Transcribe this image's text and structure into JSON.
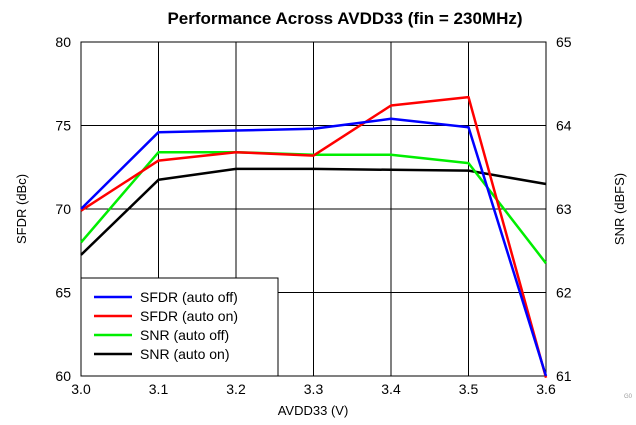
{
  "chart_data": {
    "type": "line",
    "title": "Performance Across AVDD33 (fin = 230MHz)",
    "xlabel": "AVDD33 (V)",
    "ylabel_left": "SFDR (dBc)",
    "ylabel_right": "SNR (dBFS)",
    "xlim": [
      3.0,
      3.6
    ],
    "ylim_left": [
      60,
      80
    ],
    "ylim_right": [
      61,
      65
    ],
    "x_ticks": [
      "3.0",
      "3.1",
      "3.2",
      "3.3",
      "3.4",
      "3.5",
      "3.6"
    ],
    "y_left_ticks": [
      "60",
      "65",
      "70",
      "75",
      "80"
    ],
    "y_right_ticks": [
      "61",
      "62",
      "63",
      "64",
      "65"
    ],
    "grid": true,
    "legend_position": "bottom-left",
    "series": [
      {
        "name": "SFDR (auto off)",
        "axis": "left",
        "color": "#0000ff",
        "x": [
          3.0,
          3.1,
          3.2,
          3.3,
          3.4,
          3.5,
          3.6
        ],
        "y": [
          70.0,
          74.6,
          74.7,
          74.8,
          75.4,
          74.9,
          60.0
        ]
      },
      {
        "name": "SFDR (auto on)",
        "axis": "left",
        "color": "#ff0000",
        "x": [
          3.0,
          3.1,
          3.2,
          3.3,
          3.4,
          3.5,
          3.6
        ],
        "y": [
          69.9,
          72.9,
          73.4,
          73.2,
          76.2,
          76.7,
          59.9
        ]
      },
      {
        "name": "SNR (auto off)",
        "axis": "right",
        "color": "#00ee00",
        "x": [
          3.0,
          3.1,
          3.2,
          3.3,
          3.4,
          3.5,
          3.6
        ],
        "y": [
          62.6,
          63.68,
          63.68,
          63.65,
          63.65,
          63.55,
          62.35
        ]
      },
      {
        "name": "SNR (auto on)",
        "axis": "right",
        "color": "#000000",
        "x": [
          3.0,
          3.1,
          3.2,
          3.3,
          3.4,
          3.5,
          3.6
        ],
        "y": [
          62.45,
          63.35,
          63.48,
          63.48,
          63.47,
          63.46,
          63.3
        ]
      }
    ]
  },
  "watermark": "G0"
}
